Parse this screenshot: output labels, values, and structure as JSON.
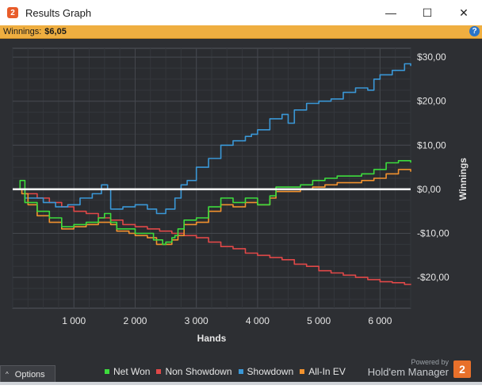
{
  "window": {
    "title": "Results Graph",
    "app_icon": "2",
    "minimize": "—",
    "maximize": "☐",
    "close": "✕"
  },
  "summary": {
    "winnings_label": "Winnings:",
    "winnings_value": "$6,05",
    "help": "?"
  },
  "footer": {
    "options_caret": "^",
    "options_label": "Options",
    "powered_by": "Powered by",
    "brand": "Hold'em Manager",
    "brand_logo": "2"
  },
  "chart_data": {
    "type": "line",
    "xlabel": "Hands",
    "ylabel": "Winnings",
    "xlim": [
      0,
      6500
    ],
    "ylim": [
      -27,
      32
    ],
    "x_ticks": [
      1000,
      2000,
      3000,
      4000,
      5000,
      6000
    ],
    "x_tick_labels": [
      "1 000",
      "2 000",
      "3 000",
      "4 000",
      "5 000",
      "6 000"
    ],
    "y_ticks": [
      30,
      20,
      10,
      0,
      -10,
      -20
    ],
    "y_tick_labels": [
      "$30,00",
      "$20,00",
      "$10,00",
      "$0,00",
      "-$10,00",
      "-$20,00"
    ],
    "grid": true,
    "legend_position": "bottom",
    "series": [
      {
        "name": "Net Won",
        "color": "#3ddc3d",
        "points": [
          [
            0,
            0
          ],
          [
            120,
            2
          ],
          [
            200,
            -3
          ],
          [
            400,
            -5
          ],
          [
            600,
            -6.5
          ],
          [
            800,
            -8.5
          ],
          [
            1000,
            -8
          ],
          [
            1200,
            -7.5
          ],
          [
            1400,
            -6.5
          ],
          [
            1500,
            -5.5
          ],
          [
            1600,
            -7.5
          ],
          [
            1700,
            -9
          ],
          [
            1900,
            -9
          ],
          [
            2000,
            -10
          ],
          [
            2200,
            -10
          ],
          [
            2300,
            -11.5
          ],
          [
            2450,
            -12.5
          ],
          [
            2500,
            -12
          ],
          [
            2600,
            -11
          ],
          [
            2650,
            -10.5
          ],
          [
            2700,
            -9
          ],
          [
            2800,
            -7
          ],
          [
            3000,
            -6.5
          ],
          [
            3200,
            -4
          ],
          [
            3400,
            -2
          ],
          [
            3600,
            -3
          ],
          [
            3800,
            -2
          ],
          [
            4000,
            -3.5
          ],
          [
            4200,
            -1.5
          ],
          [
            4300,
            0.5
          ],
          [
            4500,
            0.5
          ],
          [
            4700,
            1
          ],
          [
            4900,
            2
          ],
          [
            5100,
            2.5
          ],
          [
            5300,
            3
          ],
          [
            5500,
            3
          ],
          [
            5700,
            3.5
          ],
          [
            5900,
            4.5
          ],
          [
            6100,
            6
          ],
          [
            6300,
            6.5
          ],
          [
            6500,
            6.05
          ]
        ]
      },
      {
        "name": "Non Showdown",
        "color": "#e04848",
        "points": [
          [
            0,
            0
          ],
          [
            200,
            -1
          ],
          [
            400,
            -2
          ],
          [
            600,
            -3
          ],
          [
            800,
            -4
          ],
          [
            1000,
            -5
          ],
          [
            1200,
            -5.5
          ],
          [
            1400,
            -6.5
          ],
          [
            1600,
            -7
          ],
          [
            1800,
            -8
          ],
          [
            2000,
            -8.5
          ],
          [
            2200,
            -9
          ],
          [
            2400,
            -9.5
          ],
          [
            2600,
            -10
          ],
          [
            2800,
            -10.5
          ],
          [
            3000,
            -11
          ],
          [
            3200,
            -12
          ],
          [
            3400,
            -13
          ],
          [
            3600,
            -13.5
          ],
          [
            3800,
            -14.5
          ],
          [
            4000,
            -15
          ],
          [
            4200,
            -15.5
          ],
          [
            4400,
            -16
          ],
          [
            4600,
            -17
          ],
          [
            4800,
            -17.5
          ],
          [
            5000,
            -18.5
          ],
          [
            5200,
            -19
          ],
          [
            5400,
            -19.5
          ],
          [
            5600,
            -20
          ],
          [
            5800,
            -20.5
          ],
          [
            6000,
            -21
          ],
          [
            6200,
            -21.2
          ],
          [
            6400,
            -21.6
          ],
          [
            6500,
            -21.5
          ]
        ]
      },
      {
        "name": "Showdown",
        "color": "#3a97d6",
        "points": [
          [
            0,
            0
          ],
          [
            200,
            -2
          ],
          [
            400,
            -2
          ],
          [
            500,
            -3
          ],
          [
            700,
            -4
          ],
          [
            900,
            -3.5
          ],
          [
            1100,
            -2
          ],
          [
            1300,
            -1
          ],
          [
            1450,
            1
          ],
          [
            1550,
            0
          ],
          [
            1600,
            -4.5
          ],
          [
            1800,
            -4
          ],
          [
            2000,
            -3.5
          ],
          [
            2200,
            -4.5
          ],
          [
            2350,
            -5.5
          ],
          [
            2500,
            -4.5
          ],
          [
            2650,
            -2
          ],
          [
            2750,
            1
          ],
          [
            2850,
            2
          ],
          [
            3000,
            5
          ],
          [
            3200,
            7
          ],
          [
            3400,
            10
          ],
          [
            3600,
            11
          ],
          [
            3800,
            12
          ],
          [
            3900,
            12.5
          ],
          [
            4000,
            13.5
          ],
          [
            4200,
            16
          ],
          [
            4400,
            17
          ],
          [
            4500,
            15
          ],
          [
            4600,
            18
          ],
          [
            4800,
            19.5
          ],
          [
            5000,
            20
          ],
          [
            5200,
            20.5
          ],
          [
            5400,
            22
          ],
          [
            5600,
            23
          ],
          [
            5800,
            22.5
          ],
          [
            5900,
            25
          ],
          [
            6000,
            26
          ],
          [
            6200,
            27
          ],
          [
            6400,
            28.5
          ],
          [
            6500,
            28
          ]
        ]
      },
      {
        "name": "All-In EV",
        "color": "#f2922e",
        "points": [
          [
            0,
            0
          ],
          [
            150,
            -1
          ],
          [
            250,
            -3.5
          ],
          [
            400,
            -6
          ],
          [
            600,
            -7.5
          ],
          [
            800,
            -9
          ],
          [
            1000,
            -8.5
          ],
          [
            1200,
            -8
          ],
          [
            1400,
            -7.5
          ],
          [
            1600,
            -8
          ],
          [
            1700,
            -9.5
          ],
          [
            1900,
            -10
          ],
          [
            2000,
            -10.5
          ],
          [
            2200,
            -11
          ],
          [
            2350,
            -12.5
          ],
          [
            2500,
            -12.5
          ],
          [
            2600,
            -11.5
          ],
          [
            2700,
            -10.5
          ],
          [
            2800,
            -8
          ],
          [
            3000,
            -7.5
          ],
          [
            3200,
            -5
          ],
          [
            3400,
            -3.5
          ],
          [
            3600,
            -4
          ],
          [
            3800,
            -3
          ],
          [
            4000,
            -3.5
          ],
          [
            4200,
            -2
          ],
          [
            4300,
            -0.5
          ],
          [
            4500,
            -0.5
          ],
          [
            4700,
            0
          ],
          [
            4900,
            0.5
          ],
          [
            5100,
            1
          ],
          [
            5300,
            1.5
          ],
          [
            5500,
            1.5
          ],
          [
            5700,
            2
          ],
          [
            5900,
            2.5
          ],
          [
            6100,
            3.5
          ],
          [
            6300,
            4.5
          ],
          [
            6500,
            4
          ]
        ]
      }
    ]
  }
}
